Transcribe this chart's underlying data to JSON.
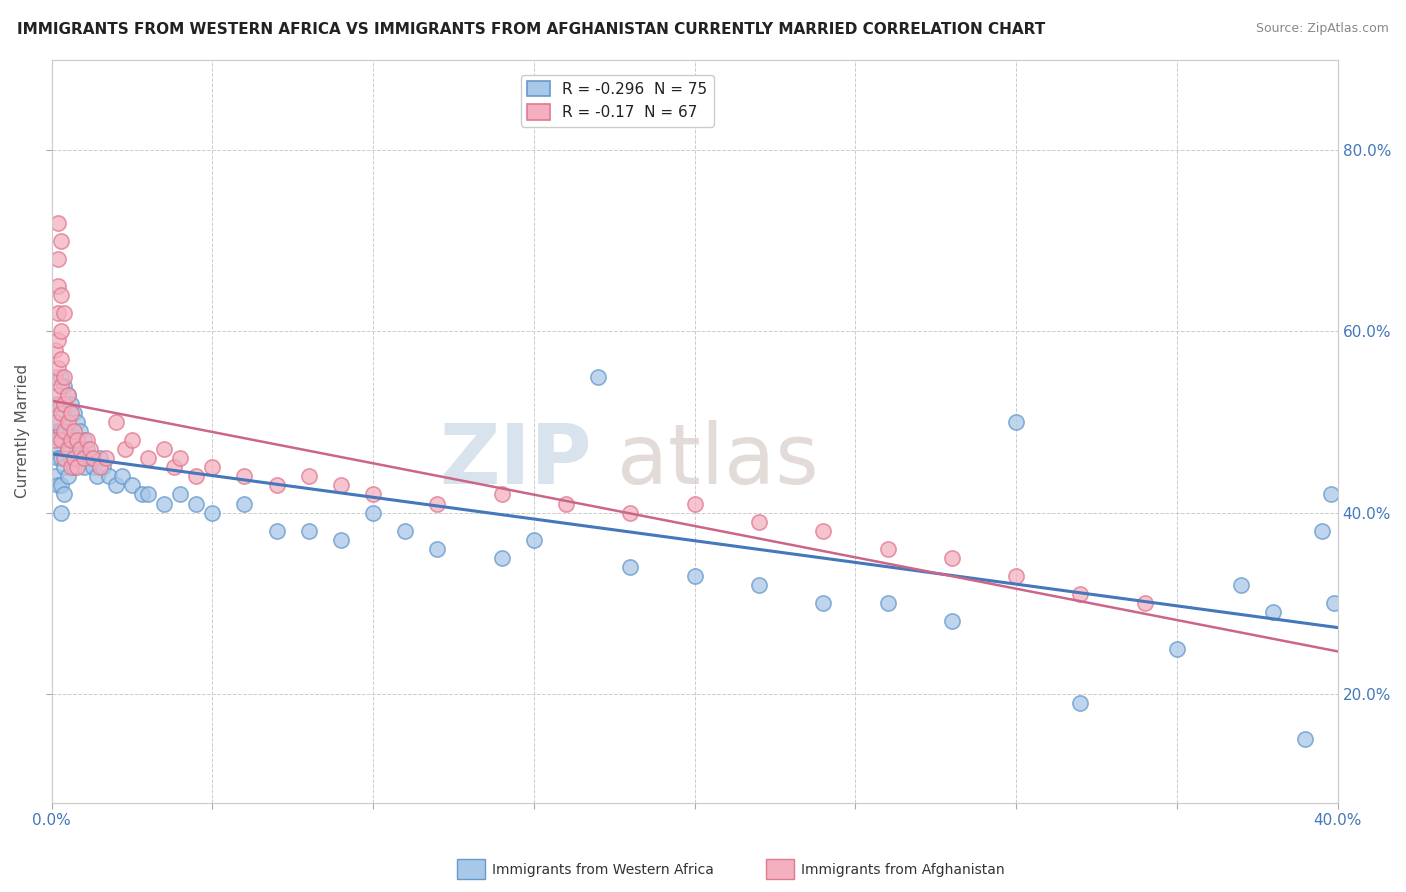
{
  "title": "IMMIGRANTS FROM WESTERN AFRICA VS IMMIGRANTS FROM AFGHANISTAN CURRENTLY MARRIED CORRELATION CHART",
  "source": "Source: ZipAtlas.com",
  "ylabel": "Currently Married",
  "right_yticks": [
    "20.0%",
    "40.0%",
    "60.0%",
    "80.0%"
  ],
  "right_ytick_vals": [
    0.2,
    0.4,
    0.6,
    0.8
  ],
  "blue_label": "Immigrants from Western Africa",
  "pink_label": "Immigrants from Afghanistan",
  "blue_R": -0.296,
  "blue_N": 75,
  "pink_R": -0.17,
  "pink_N": 67,
  "blue_color": "#a8c8e8",
  "pink_color": "#f4b0c0",
  "blue_edge": "#6699cc",
  "pink_edge": "#e07890",
  "blue_trend_color": "#4477bb",
  "pink_trend_color": "#cc6688",
  "background_color": "#ffffff",
  "xlim": [
    0.0,
    0.4
  ],
  "ylim": [
    0.08,
    0.9
  ],
  "series_blue_x": [
    0.001,
    0.001,
    0.001,
    0.002,
    0.002,
    0.002,
    0.002,
    0.003,
    0.003,
    0.003,
    0.003,
    0.003,
    0.003,
    0.004,
    0.004,
    0.004,
    0.004,
    0.004,
    0.005,
    0.005,
    0.005,
    0.005,
    0.006,
    0.006,
    0.006,
    0.007,
    0.007,
    0.007,
    0.008,
    0.008,
    0.009,
    0.009,
    0.01,
    0.01,
    0.011,
    0.012,
    0.013,
    0.014,
    0.015,
    0.016,
    0.018,
    0.02,
    0.022,
    0.025,
    0.028,
    0.03,
    0.035,
    0.04,
    0.045,
    0.05,
    0.06,
    0.07,
    0.08,
    0.09,
    0.1,
    0.11,
    0.12,
    0.14,
    0.15,
    0.17,
    0.18,
    0.2,
    0.22,
    0.24,
    0.26,
    0.28,
    0.3,
    0.32,
    0.35,
    0.37,
    0.38,
    0.39,
    0.395,
    0.398,
    0.399
  ],
  "series_blue_y": [
    0.5,
    0.47,
    0.44,
    0.52,
    0.49,
    0.46,
    0.43,
    0.55,
    0.52,
    0.49,
    0.46,
    0.43,
    0.4,
    0.54,
    0.51,
    0.48,
    0.45,
    0.42,
    0.53,
    0.5,
    0.47,
    0.44,
    0.52,
    0.49,
    0.46,
    0.51,
    0.48,
    0.45,
    0.5,
    0.47,
    0.49,
    0.46,
    0.48,
    0.45,
    0.47,
    0.46,
    0.45,
    0.44,
    0.46,
    0.45,
    0.44,
    0.43,
    0.44,
    0.43,
    0.42,
    0.42,
    0.41,
    0.42,
    0.41,
    0.4,
    0.41,
    0.38,
    0.38,
    0.37,
    0.4,
    0.38,
    0.36,
    0.35,
    0.37,
    0.55,
    0.34,
    0.33,
    0.32,
    0.3,
    0.3,
    0.28,
    0.5,
    0.19,
    0.25,
    0.32,
    0.29,
    0.15,
    0.38,
    0.42,
    0.3
  ],
  "series_pink_x": [
    0.001,
    0.001,
    0.001,
    0.001,
    0.001,
    0.002,
    0.002,
    0.002,
    0.002,
    0.002,
    0.002,
    0.002,
    0.003,
    0.003,
    0.003,
    0.003,
    0.003,
    0.003,
    0.003,
    0.004,
    0.004,
    0.004,
    0.004,
    0.004,
    0.005,
    0.005,
    0.005,
    0.006,
    0.006,
    0.006,
    0.007,
    0.007,
    0.008,
    0.008,
    0.009,
    0.01,
    0.011,
    0.012,
    0.013,
    0.015,
    0.017,
    0.02,
    0.023,
    0.025,
    0.03,
    0.035,
    0.038,
    0.04,
    0.045,
    0.05,
    0.06,
    0.07,
    0.08,
    0.09,
    0.1,
    0.12,
    0.14,
    0.16,
    0.18,
    0.2,
    0.22,
    0.24,
    0.26,
    0.28,
    0.3,
    0.32,
    0.34
  ],
  "series_pink_y": [
    0.5,
    0.48,
    0.52,
    0.55,
    0.58,
    0.65,
    0.62,
    0.59,
    0.56,
    0.53,
    0.68,
    0.72,
    0.6,
    0.57,
    0.54,
    0.51,
    0.48,
    0.64,
    0.7,
    0.55,
    0.52,
    0.49,
    0.46,
    0.62,
    0.53,
    0.5,
    0.47,
    0.51,
    0.48,
    0.45,
    0.49,
    0.46,
    0.48,
    0.45,
    0.47,
    0.46,
    0.48,
    0.47,
    0.46,
    0.45,
    0.46,
    0.5,
    0.47,
    0.48,
    0.46,
    0.47,
    0.45,
    0.46,
    0.44,
    0.45,
    0.44,
    0.43,
    0.44,
    0.43,
    0.42,
    0.41,
    0.42,
    0.41,
    0.4,
    0.41,
    0.39,
    0.38,
    0.36,
    0.35,
    0.33,
    0.31,
    0.3
  ],
  "watermark_zip_color": "#c8d8e8",
  "watermark_atlas_color": "#d8ccc8"
}
